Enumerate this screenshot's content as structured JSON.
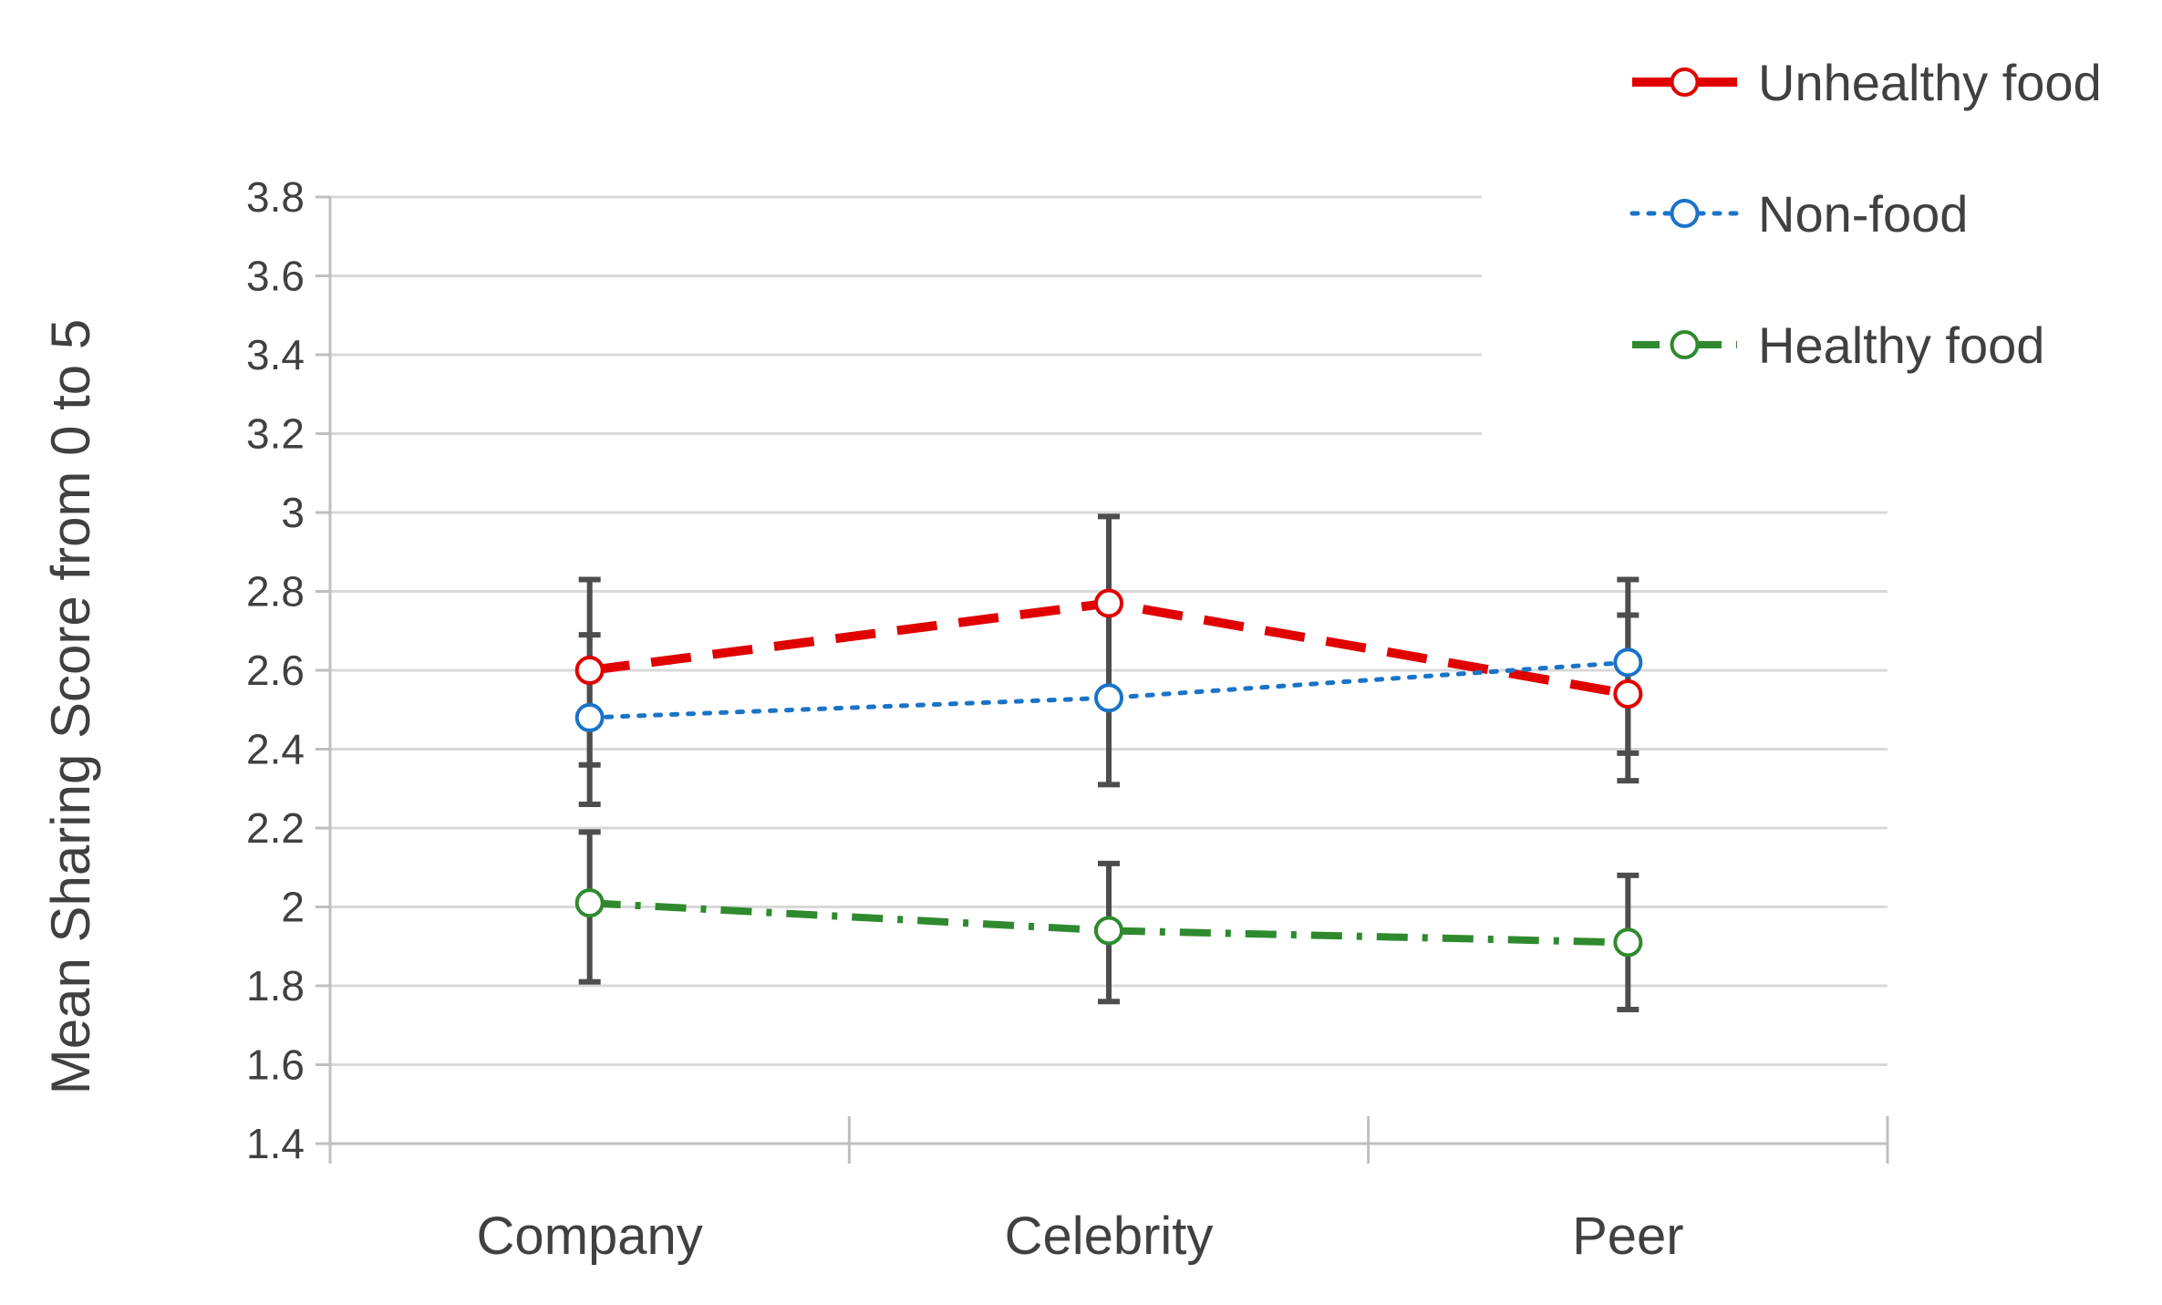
{
  "chart_data": {
    "type": "line",
    "title": "",
    "xlabel": "",
    "ylabel": "Mean Sharing Score from 0 to 5",
    "ylim": [
      1.4,
      3.8
    ],
    "ystep": 0.2,
    "yticks": [
      "1.4",
      "1.6",
      "1.8",
      "2",
      "2.2",
      "2.4",
      "2.6",
      "2.8",
      "3",
      "3.2",
      "3.4",
      "3.6",
      "3.8"
    ],
    "categories": [
      "Company",
      "Celebrity",
      "Peer"
    ],
    "grid": true,
    "legend_position": "top-right",
    "series": [
      {
        "name": "Unhealthy food",
        "color": "#e00000",
        "dash": "dashed",
        "values": [
          2.6,
          2.77,
          2.54
        ],
        "err_low": [
          2.36,
          2.53,
          2.32
        ],
        "err_high": [
          2.83,
          2.99,
          2.74
        ]
      },
      {
        "name": "Non-food",
        "color": "#1a73c7",
        "dash": "dotted",
        "values": [
          2.48,
          2.53,
          2.62
        ],
        "err_low": [
          2.26,
          2.31,
          2.39
        ],
        "err_high": [
          2.69,
          2.75,
          2.83
        ]
      },
      {
        "name": "Healthy food",
        "color": "#2f8a2f",
        "dash": "dash-dot",
        "values": [
          2.01,
          1.94,
          1.91
        ],
        "err_low": [
          1.81,
          1.76,
          1.74
        ],
        "err_high": [
          2.19,
          2.11,
          2.08
        ]
      }
    ]
  }
}
